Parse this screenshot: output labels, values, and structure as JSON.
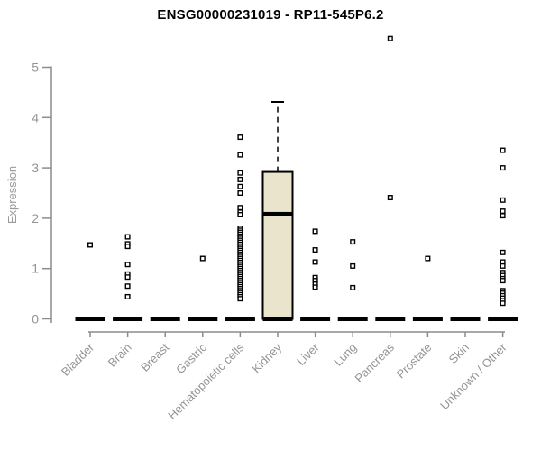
{
  "chart_data": {
    "type": "boxplot",
    "title": "ENSG00000231019 - RP11-545P6.2",
    "ylabel": "Expression",
    "ylim": [
      0,
      5
    ],
    "yticks": [
      0,
      1,
      2,
      3,
      4,
      5
    ],
    "grid": false,
    "legend": null,
    "categories": [
      "Bladder",
      "Brain",
      "Breast",
      "Gastric",
      "Hematopoietic cells",
      "Kidney",
      "Liver",
      "Lung",
      "Pancreas",
      "Prostate",
      "Skin",
      "Unknown / Other"
    ],
    "series": [
      {
        "category": "Bladder",
        "q1": 0,
        "median": 0,
        "q3": 0,
        "whisker_low": 0,
        "whisker_high": 0,
        "outliers": [
          1.47
        ]
      },
      {
        "category": "Brain",
        "q1": 0,
        "median": 0,
        "q3": 0,
        "whisker_low": 0,
        "whisker_high": 0,
        "outliers": [
          1.63,
          1.49,
          1.44,
          1.08,
          0.89,
          0.83,
          0.65,
          0.44
        ]
      },
      {
        "category": "Breast",
        "q1": 0,
        "median": 0,
        "q3": 0,
        "whisker_low": 0,
        "whisker_high": 0,
        "outliers": []
      },
      {
        "category": "Gastric",
        "q1": 0,
        "median": 0,
        "q3": 0,
        "whisker_low": 0,
        "whisker_high": 0,
        "outliers": [
          1.2
        ]
      },
      {
        "category": "Hematopoietic cells",
        "q1": 0,
        "median": 0,
        "q3": 0,
        "whisker_low": 0,
        "whisker_high": 0,
        "outliers": [
          3.61,
          3.26,
          2.9,
          2.77,
          2.63,
          2.5,
          2.21,
          2.12,
          2.07,
          1.8,
          1.76,
          1.72,
          1.68,
          1.64,
          1.6,
          1.56,
          1.52,
          1.48,
          1.44,
          1.4,
          1.36,
          1.32,
          1.28,
          1.24,
          1.2,
          1.16,
          1.12,
          1.08,
          1.04,
          1.0,
          0.96,
          0.92,
          0.88,
          0.84,
          0.8,
          0.76,
          0.72,
          0.68,
          0.64,
          0.6,
          0.56,
          0.52,
          0.48,
          0.44,
          0.4
        ]
      },
      {
        "category": "Kidney",
        "q1": 0,
        "median": 2.08,
        "q3": 2.92,
        "whisker_low": 0,
        "whisker_high": 4.31,
        "outliers": []
      },
      {
        "category": "Liver",
        "q1": 0,
        "median": 0,
        "q3": 0,
        "whisker_low": 0,
        "whisker_high": 0,
        "outliers": [
          1.74,
          1.37,
          1.13,
          0.82,
          0.76,
          0.69,
          0.63
        ]
      },
      {
        "category": "Lung",
        "q1": 0,
        "median": 0,
        "q3": 0,
        "whisker_low": 0,
        "whisker_high": 0,
        "outliers": [
          1.53,
          1.05,
          0.62
        ]
      },
      {
        "category": "Pancreas",
        "q1": 0,
        "median": 0,
        "q3": 0,
        "whisker_low": 0,
        "whisker_high": 0,
        "outliers": [
          5.57,
          2.41
        ]
      },
      {
        "category": "Prostate",
        "q1": 0,
        "median": 0,
        "q3": 0,
        "whisker_low": 0,
        "whisker_high": 0,
        "outliers": [
          1.2
        ]
      },
      {
        "category": "Skin",
        "q1": 0,
        "median": 0,
        "q3": 0,
        "whisker_low": 0,
        "whisker_high": 0,
        "outliers": []
      },
      {
        "category": "Unknown / Other",
        "q1": 0,
        "median": 0,
        "q3": 0,
        "whisker_low": 0,
        "whisker_high": 0,
        "outliers": [
          3.35,
          3.0,
          2.36,
          2.14,
          2.05,
          1.32,
          1.13,
          1.05,
          0.92,
          0.86,
          0.8,
          0.76,
          0.56,
          0.51,
          0.46,
          0.41,
          0.36,
          0.31
        ]
      }
    ],
    "colors": {
      "box_fill": "#EAE4CC",
      "box_border": "#000000",
      "outlier_stroke": "#000000",
      "outlier_fill": "#ffffff",
      "axis": "#8c8c8c",
      "tick_label": "#949494",
      "title": "#000000"
    }
  }
}
